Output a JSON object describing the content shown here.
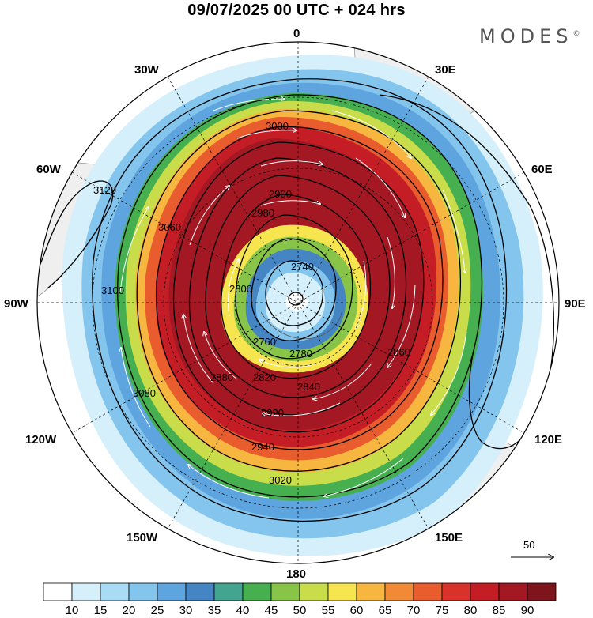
{
  "header": {
    "title": "09/07/2025  00 UTC  + 024 hrs",
    "brand": "MODES",
    "brand_mark": "©"
  },
  "map": {
    "projection": "polar-stereographic-south",
    "longitude_labels": {
      "top": "0",
      "top_left": "30W",
      "top_right": "30E",
      "upper_left": "60W",
      "upper_right": "60E",
      "left": "90W",
      "right": "90E",
      "lower_left": "120W",
      "lower_right": "120E",
      "bottom_left": "150W",
      "bottom_right": "150E",
      "bottom": "180"
    },
    "contour_labels": [
      "2740",
      "2760",
      "2780",
      "2800",
      "2820",
      "2840",
      "2860",
      "2880",
      "2900",
      "2920",
      "2940",
      "2980",
      "3000",
      "3020",
      "3060",
      "3080",
      "3100",
      "3120"
    ],
    "vector_reference": "50"
  },
  "colorbar": {
    "labels": [
      "10",
      "15",
      "20",
      "25",
      "30",
      "35",
      "40",
      "45",
      "50",
      "55",
      "60",
      "65",
      "70",
      "75",
      "80",
      "85",
      "90"
    ],
    "colors": [
      "#ffffff",
      "#d6f0fb",
      "#a8dcf5",
      "#84c5ee",
      "#5ea4de",
      "#4585c3",
      "#43a58f",
      "#46b050",
      "#88c447",
      "#c9dd4a",
      "#f6e54e",
      "#f6b640",
      "#f08a36",
      "#e85c2d",
      "#d8322b",
      "#c51d25",
      "#a31822",
      "#7e141c"
    ]
  }
}
